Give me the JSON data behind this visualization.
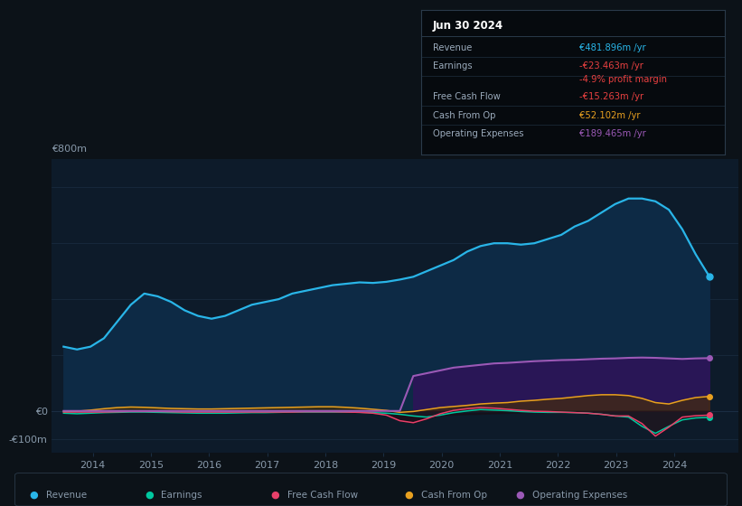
{
  "background_color": "#0c1218",
  "plot_bg_color": "#0d1b2a",
  "grid_color": "#1a2d42",
  "text_color": "#8899aa",
  "white_color": "#ffffff",
  "ylim": [
    -150,
    900
  ],
  "xtick_years": [
    2014,
    2015,
    2016,
    2017,
    2018,
    2019,
    2020,
    2021,
    2022,
    2023,
    2024
  ],
  "legend": [
    {
      "label": "Revenue",
      "color": "#29b5e8"
    },
    {
      "label": "Earnings",
      "color": "#00c8a0"
    },
    {
      "label": "Free Cash Flow",
      "color": "#e8406a"
    },
    {
      "label": "Cash From Op",
      "color": "#e8a020"
    },
    {
      "label": "Operating Expenses",
      "color": "#9b59b6"
    }
  ],
  "info_box": {
    "title": "Jun 30 2024",
    "rows": [
      {
        "label": "Revenue",
        "value": "€481.896m /yr",
        "value_color": "#29b5e8"
      },
      {
        "label": "Earnings",
        "value": "-€23.463m /yr",
        "value_color": "#e84040"
      },
      {
        "label": "",
        "value": "-4.9% profit margin",
        "value_color": "#e84040"
      },
      {
        "label": "Free Cash Flow",
        "value": "-€15.263m /yr",
        "value_color": "#e84040"
      },
      {
        "label": "Cash From Op",
        "value": "€52.102m /yr",
        "value_color": "#e8a020"
      },
      {
        "label": "Operating Expenses",
        "value": "€189.465m /yr",
        "value_color": "#9b59b6"
      }
    ]
  },
  "revenue": [
    230,
    220,
    230,
    260,
    320,
    380,
    420,
    410,
    390,
    360,
    340,
    330,
    340,
    360,
    380,
    390,
    400,
    420,
    430,
    440,
    450,
    455,
    460,
    458,
    462,
    470,
    480,
    500,
    520,
    540,
    570,
    590,
    600,
    600,
    595,
    600,
    615,
    630,
    660,
    680,
    710,
    740,
    760,
    760,
    750,
    720,
    650,
    560,
    482
  ],
  "earnings": [
    -8,
    -10,
    -8,
    -6,
    -5,
    -4,
    -4,
    -5,
    -6,
    -7,
    -8,
    -8,
    -8,
    -7,
    -6,
    -6,
    -5,
    -4,
    -4,
    -4,
    -4,
    -4,
    -5,
    -6,
    -8,
    -12,
    -18,
    -22,
    -15,
    -6,
    0,
    5,
    3,
    1,
    -2,
    -4,
    -5,
    -5,
    -6,
    -8,
    -12,
    -18,
    -22,
    -55,
    -80,
    -55,
    -32,
    -25,
    -23
  ],
  "free_cash_flow": [
    -4,
    -4,
    -4,
    -4,
    -3,
    -2,
    -2,
    -2,
    -3,
    -4,
    -4,
    -4,
    -4,
    -4,
    -4,
    -4,
    -4,
    -4,
    -3,
    -3,
    -3,
    -4,
    -5,
    -8,
    -15,
    -35,
    -42,
    -28,
    -10,
    2,
    8,
    12,
    10,
    6,
    2,
    -1,
    -2,
    -4,
    -6,
    -8,
    -12,
    -18,
    -18,
    -45,
    -90,
    -58,
    -22,
    -17,
    -15
  ],
  "cash_from_op": [
    -2,
    -1,
    3,
    8,
    12,
    14,
    13,
    11,
    9,
    8,
    7,
    7,
    8,
    9,
    10,
    11,
    12,
    13,
    14,
    15,
    15,
    13,
    10,
    6,
    2,
    -5,
    -2,
    5,
    12,
    16,
    20,
    25,
    28,
    30,
    35,
    38,
    42,
    45,
    50,
    55,
    58,
    58,
    55,
    45,
    30,
    25,
    38,
    48,
    52
  ],
  "op_expenses": [
    0,
    0,
    0,
    0,
    0,
    0,
    0,
    0,
    0,
    0,
    0,
    0,
    0,
    0,
    0,
    0,
    0,
    0,
    0,
    0,
    0,
    0,
    0,
    0,
    0,
    0,
    125,
    135,
    145,
    155,
    160,
    165,
    170,
    172,
    175,
    178,
    180,
    182,
    183,
    185,
    187,
    188,
    190,
    191,
    190,
    188,
    186,
    188,
    189
  ]
}
